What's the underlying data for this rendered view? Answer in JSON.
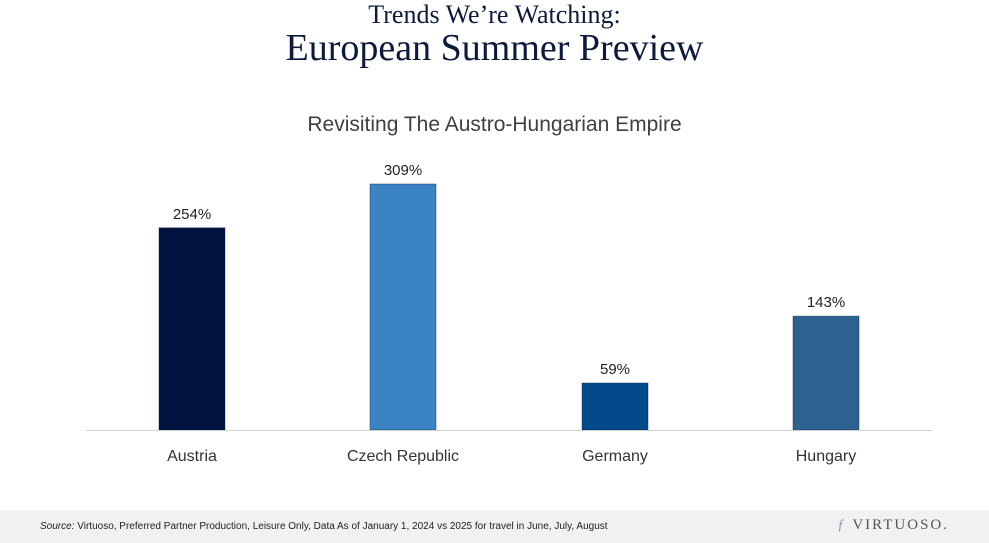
{
  "header": {
    "kicker": "Trends We’re Watching:",
    "title": "European Summer Preview"
  },
  "chart_data": {
    "type": "bar",
    "title": "Revisiting The Austro-Hungarian Empire",
    "categories": [
      "Austria",
      "Czech Republic",
      "Germany",
      "Hungary"
    ],
    "values": [
      254,
      309,
      59,
      143
    ],
    "data_labels": [
      "254%",
      "309%",
      "59%",
      "143%"
    ],
    "colors": [
      "#00133f",
      "#3a84c4",
      "#024a8a",
      "#2d6290"
    ],
    "ylim": [
      0,
      309
    ],
    "grid": false,
    "legend": "none",
    "xlabel": "",
    "ylabel": ""
  },
  "footer": {
    "source_label": "Source:",
    "source_text": " Virtuoso, Preferred Partner Production, Leisure Only, Data As of January 1, 2024 vs 2025 for travel in June, July, August",
    "logo": "VIRTUOSO."
  }
}
